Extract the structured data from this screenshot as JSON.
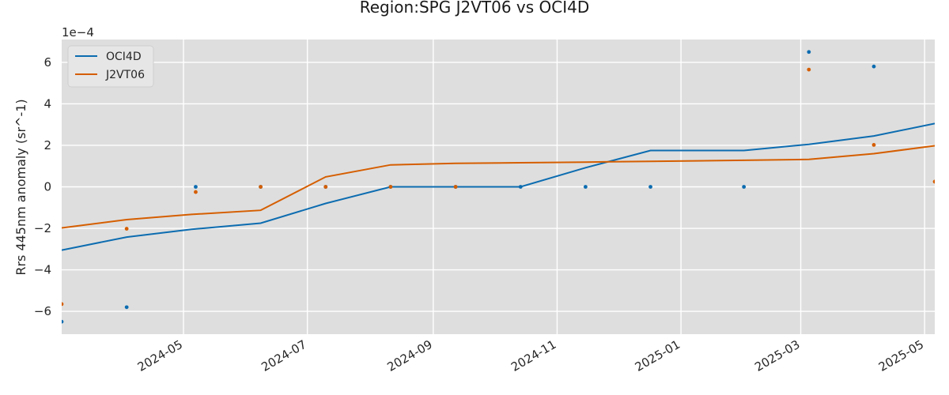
{
  "chart_data": {
    "type": "line",
    "title": "Region:SPG J2VT06 vs OCI4D",
    "xlabel": "",
    "ylabel": "Rrs 445nm anomaly (sr^-1)",
    "y_scale_label": "1e−4",
    "y_multiplier": 0.0001,
    "xlim": [
      "2024-03-02",
      "2025-05-06"
    ],
    "ylim": [
      -7.1,
      7.1
    ],
    "x_ticks": [
      "2024-05",
      "2024-07",
      "2024-09",
      "2024-11",
      "2025-01",
      "2025-03",
      "2025-05"
    ],
    "y_ticks": [
      "−6",
      "−4",
      "−2",
      "0",
      "2",
      "4",
      "6"
    ],
    "legend_position": "top-left",
    "grid": true,
    "background": "#dedede",
    "series": [
      {
        "name": "OCI4D",
        "color": "#0c6cb0",
        "line": [
          [
            "2024-03-02",
            -3.05
          ],
          [
            "2024-04-03",
            -2.42
          ],
          [
            "2024-05-05",
            -2.05
          ],
          [
            "2024-06-08",
            -1.75
          ],
          [
            "2024-07-10",
            -0.8
          ],
          [
            "2024-08-11",
            0.0
          ],
          [
            "2024-09-12",
            0.0
          ],
          [
            "2024-10-14",
            0.0
          ],
          [
            "2024-11-15",
            0.92
          ],
          [
            "2024-12-17",
            1.75
          ],
          [
            "2025-02-01",
            1.75
          ],
          [
            "2025-03-05",
            2.05
          ],
          [
            "2025-04-06",
            2.45
          ],
          [
            "2025-05-06",
            3.05
          ]
        ],
        "points": [
          [
            "2024-03-02",
            -6.5
          ],
          [
            "2024-04-03",
            -5.8
          ],
          [
            "2024-05-07",
            0.0
          ],
          [
            "2024-06-08",
            0.0
          ],
          [
            "2024-07-10",
            0.0
          ],
          [
            "2024-08-11",
            0.0
          ],
          [
            "2024-09-12",
            0.0
          ],
          [
            "2024-10-14",
            0.0
          ],
          [
            "2024-11-15",
            0.0
          ],
          [
            "2024-12-17",
            0.0
          ],
          [
            "2025-02-01",
            0.0
          ],
          [
            "2025-03-05",
            6.5
          ],
          [
            "2025-04-06",
            5.8
          ]
        ]
      },
      {
        "name": "J2VT06",
        "color": "#d55e00",
        "line": [
          [
            "2024-03-02",
            -1.98
          ],
          [
            "2024-04-03",
            -1.58
          ],
          [
            "2024-05-05",
            -1.33
          ],
          [
            "2024-06-08",
            -1.13
          ],
          [
            "2024-07-10",
            0.48
          ],
          [
            "2024-08-11",
            1.06
          ],
          [
            "2024-09-12",
            1.13
          ],
          [
            "2024-10-14",
            1.16
          ],
          [
            "2024-11-15",
            1.19
          ],
          [
            "2024-12-17",
            1.23
          ],
          [
            "2025-02-01",
            1.28
          ],
          [
            "2025-03-05",
            1.32
          ],
          [
            "2025-04-06",
            1.6
          ],
          [
            "2025-05-06",
            1.98
          ]
        ],
        "points": [
          [
            "2024-03-02",
            -5.65
          ],
          [
            "2024-04-03",
            -2.02
          ],
          [
            "2024-05-07",
            -0.25
          ],
          [
            "2024-06-08",
            0.0
          ],
          [
            "2024-07-10",
            0.0
          ],
          [
            "2024-08-11",
            0.0
          ],
          [
            "2024-09-12",
            0.0
          ],
          [
            "2025-03-05",
            5.65
          ],
          [
            "2025-04-06",
            2.02
          ],
          [
            "2025-05-06",
            0.25
          ]
        ]
      }
    ]
  }
}
